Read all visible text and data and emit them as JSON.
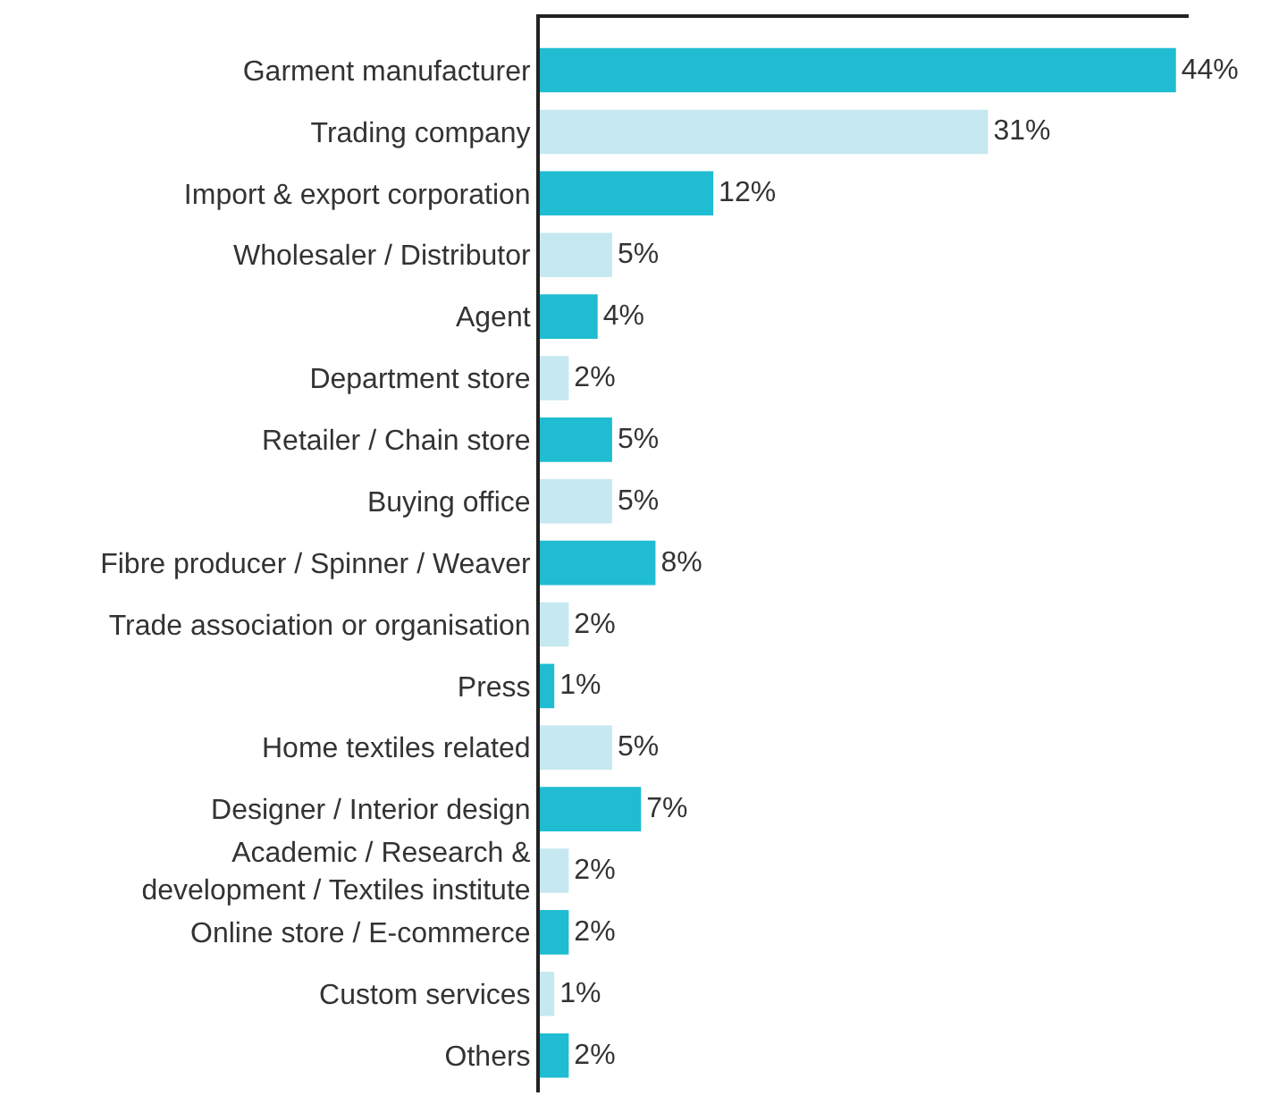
{
  "chart_data": {
    "type": "bar",
    "orientation": "horizontal",
    "categories": [
      "Garment manufacturer",
      "Trading company",
      "Import & export corporation",
      "Wholesaler / Distributor",
      "Agent",
      "Department store",
      "Retailer / Chain store",
      "Buying office",
      "Fibre producer / Spinner / Weaver",
      "Trade association or organisation",
      "Press",
      "Home textiles related",
      "Designer / Interior design",
      "Academic / Research &\ndevelopment / Textiles institute",
      "Online store / E-commerce",
      "Custom services",
      "Others"
    ],
    "values": [
      44,
      31,
      12,
      5,
      4,
      2,
      5,
      5,
      8,
      2,
      1,
      5,
      7,
      2,
      2,
      1,
      2
    ],
    "value_labels": [
      "44%",
      "31%",
      "12%",
      "5%",
      "4%",
      "2%",
      "5%",
      "5%",
      "8%",
      "2%",
      "1%",
      "5%",
      "7%",
      "2%",
      "2%",
      "1%",
      "2%"
    ],
    "colors": [
      "#1fbcd2",
      "#c6e8f0",
      "#1fbcd2",
      "#c6e8f0",
      "#1fbcd2",
      "#c6e8f0",
      "#1fbcd2",
      "#c6e8f0",
      "#1fbcd2",
      "#c6e8f0",
      "#1fbcd2",
      "#c6e8f0",
      "#1fbcd2",
      "#c6e8f0",
      "#1fbcd2",
      "#c6e8f0",
      "#1fbcd2"
    ],
    "data_labels": false
  }
}
